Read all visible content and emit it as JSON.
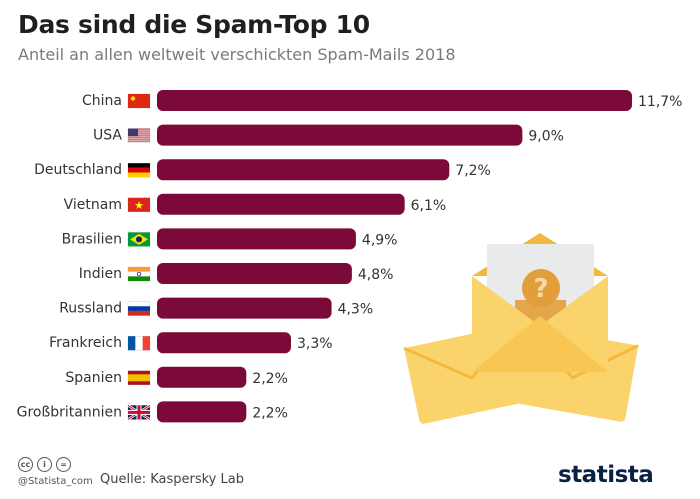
{
  "header": {
    "title": "Das sind die Spam-Top 10",
    "subtitle": "Anteil an allen weltweit verschickten Spam-Mails 2018"
  },
  "chart_data": {
    "type": "bar",
    "orientation": "horizontal",
    "categories": [
      "China",
      "USA",
      "Deutschland",
      "Vietnam",
      "Brasilien",
      "Indien",
      "Russland",
      "Frankreich",
      "Spanien",
      "Großbritannien"
    ],
    "values": [
      11.7,
      9.0,
      7.2,
      6.1,
      4.9,
      4.8,
      4.3,
      3.3,
      2.2,
      2.2
    ],
    "value_labels": [
      "11,7%",
      "9,0%",
      "7,2%",
      "6,1%",
      "4,9%",
      "4,8%",
      "4,3%",
      "3,3%",
      "2,2%",
      "2,2%"
    ],
    "flags": [
      "flag-china-icon",
      "flag-usa-icon",
      "flag-germany-icon",
      "flag-vietnam-icon",
      "flag-brazil-icon",
      "flag-india-icon",
      "flag-russia-icon",
      "flag-france-icon",
      "flag-spain-icon",
      "flag-uk-icon"
    ],
    "xlim": [
      0,
      11.7
    ],
    "grid": false,
    "legend": "none",
    "bar_color": "#7b0a38"
  },
  "illustration": {
    "icon": "envelope-question-icon",
    "colors": {
      "envelope": "#fbd36b",
      "envelope_dark": "#f3b93f",
      "paper": "#e9eaec",
      "badge": "#e29e3a"
    }
  },
  "footer": {
    "license_icons": [
      "cc-icon",
      "by-icon",
      "nd-icon"
    ],
    "handle": "@Statista_com",
    "source": "Quelle: Kaspersky Lab",
    "brand": "statista"
  }
}
